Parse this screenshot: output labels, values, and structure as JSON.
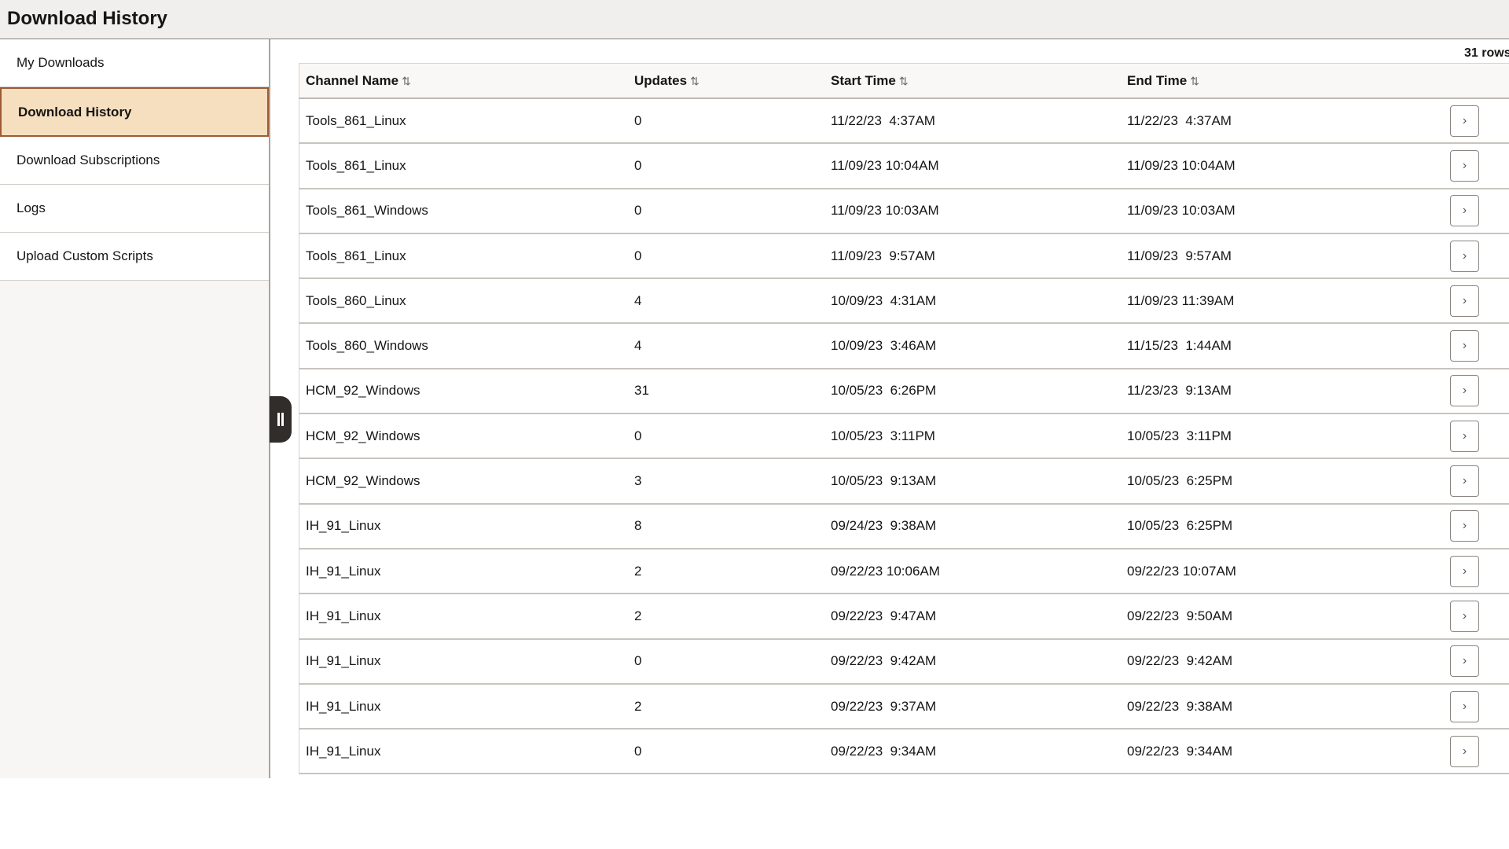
{
  "header": {
    "title": "Download History"
  },
  "sidebar": {
    "items": [
      {
        "label": "My Downloads",
        "active": false
      },
      {
        "label": "Download History",
        "active": true
      },
      {
        "label": "Download Subscriptions",
        "active": false
      },
      {
        "label": "Logs",
        "active": false
      },
      {
        "label": "Upload Custom Scripts",
        "active": false
      }
    ]
  },
  "table": {
    "row_count": "31 rows",
    "columns": [
      "Channel Name",
      "Updates",
      "Start Time",
      "End Time"
    ],
    "sort_icon": "⇅",
    "rows": [
      [
        "Tools_861_Linux",
        "0",
        "11/22/23  4:37AM",
        "11/22/23  4:37AM"
      ],
      [
        "Tools_861_Linux",
        "0",
        "11/09/23 10:04AM",
        "11/09/23 10:04AM"
      ],
      [
        "Tools_861_Windows",
        "0",
        "11/09/23 10:03AM",
        "11/09/23 10:03AM"
      ],
      [
        "Tools_861_Linux",
        "0",
        "11/09/23  9:57AM",
        "11/09/23  9:57AM"
      ],
      [
        "Tools_860_Linux",
        "4",
        "10/09/23  4:31AM",
        "11/09/23 11:39AM"
      ],
      [
        "Tools_860_Windows",
        "4",
        "10/09/23  3:46AM",
        "11/15/23  1:44AM"
      ],
      [
        "HCM_92_Windows",
        "31",
        "10/05/23  6:26PM",
        "11/23/23  9:13AM"
      ],
      [
        "HCM_92_Windows",
        "0",
        "10/05/23  3:11PM",
        "10/05/23  3:11PM"
      ],
      [
        "HCM_92_Windows",
        "3",
        "10/05/23  9:13AM",
        "10/05/23  6:25PM"
      ],
      [
        "IH_91_Linux",
        "8",
        "09/24/23  9:38AM",
        "10/05/23  6:25PM"
      ],
      [
        "IH_91_Linux",
        "2",
        "09/22/23 10:06AM",
        "09/22/23 10:07AM"
      ],
      [
        "IH_91_Linux",
        "2",
        "09/22/23  9:47AM",
        "09/22/23  9:50AM"
      ],
      [
        "IH_91_Linux",
        "0",
        "09/22/23  9:42AM",
        "09/22/23  9:42AM"
      ],
      [
        "IH_91_Linux",
        "2",
        "09/22/23  9:37AM",
        "09/22/23  9:38AM"
      ],
      [
        "IH_91_Linux",
        "0",
        "09/22/23  9:34AM",
        "09/22/23  9:34AM"
      ]
    ]
  },
  "colors": {
    "active_bg": "#f5dfbe",
    "active_border": "#9e5a34",
    "header_bg": "#f0efed"
  }
}
